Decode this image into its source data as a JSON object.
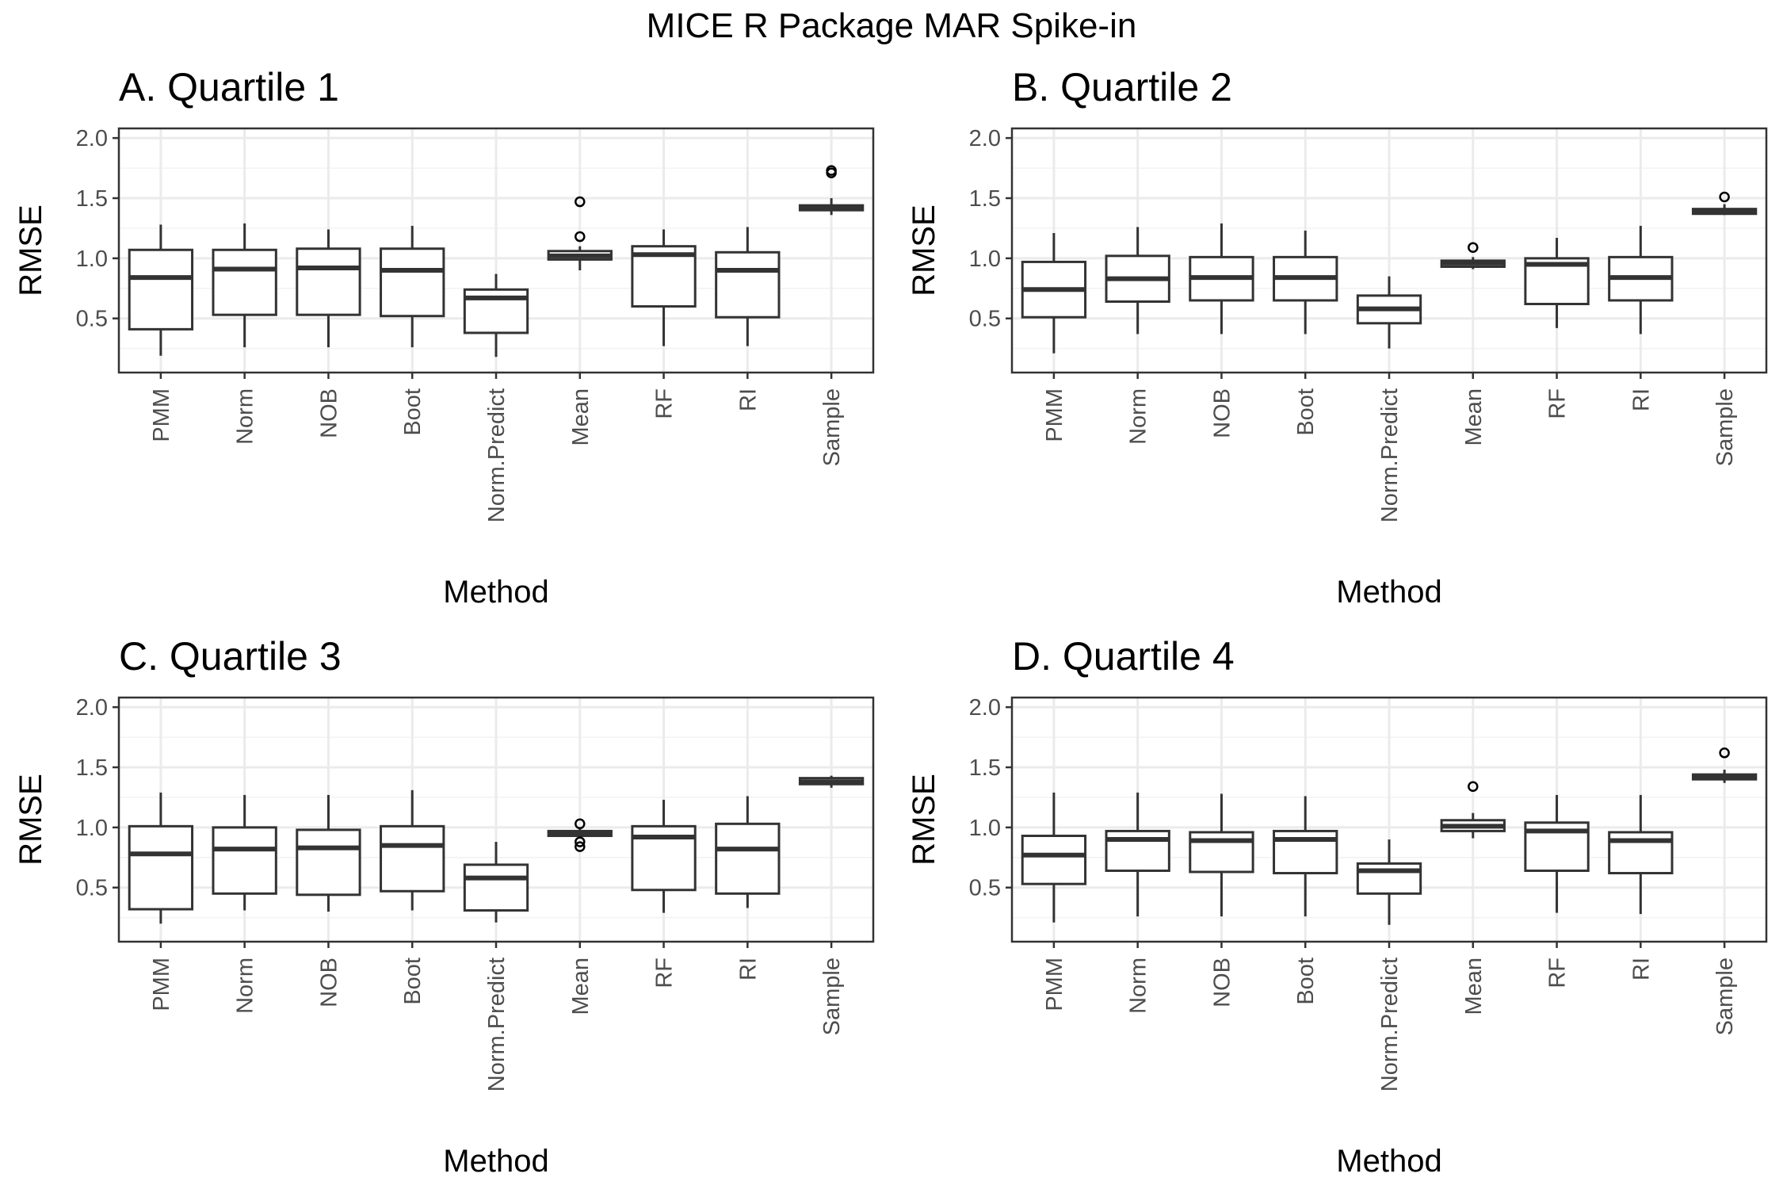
{
  "figure": {
    "title": "MICE R Package MAR Spike-in"
  },
  "chart_data": [
    {
      "type": "boxplot",
      "title": "A. Quartile 1",
      "xlabel": "Method",
      "ylabel": "RMSE",
      "ylim": [
        0.05,
        2.08
      ],
      "yticks": [
        0.5,
        1.0,
        1.5,
        2.0
      ],
      "ytick_labels": [
        "0.5",
        "1.0",
        "1.5",
        "2.0"
      ],
      "grid": true,
      "categories": [
        "PMM",
        "Norm",
        "NOB",
        "Boot",
        "Norm.Predict",
        "Mean",
        "RF",
        "RI",
        "Sample"
      ],
      "boxes": [
        {
          "min": 0.19,
          "q1": 0.41,
          "median": 0.84,
          "q3": 1.07,
          "max": 1.28,
          "outliers": []
        },
        {
          "min": 0.26,
          "q1": 0.53,
          "median": 0.91,
          "q3": 1.07,
          "max": 1.29,
          "outliers": []
        },
        {
          "min": 0.26,
          "q1": 0.53,
          "median": 0.92,
          "q3": 1.08,
          "max": 1.24,
          "outliers": []
        },
        {
          "min": 0.26,
          "q1": 0.52,
          "median": 0.9,
          "q3": 1.08,
          "max": 1.27,
          "outliers": []
        },
        {
          "min": 0.18,
          "q1": 0.38,
          "median": 0.67,
          "q3": 0.74,
          "max": 0.87,
          "outliers": []
        },
        {
          "min": 0.9,
          "q1": 0.99,
          "median": 1.02,
          "q3": 1.06,
          "max": 1.1,
          "outliers": [
            1.18,
            1.47
          ]
        },
        {
          "min": 0.27,
          "q1": 0.6,
          "median": 1.03,
          "q3": 1.1,
          "max": 1.24,
          "outliers": []
        },
        {
          "min": 0.27,
          "q1": 0.51,
          "median": 0.9,
          "q3": 1.05,
          "max": 1.26,
          "outliers": []
        },
        {
          "min": 1.36,
          "q1": 1.4,
          "median": 1.42,
          "q3": 1.44,
          "max": 1.5,
          "outliers": [
            1.71,
            1.73
          ]
        }
      ]
    },
    {
      "type": "boxplot",
      "title": "B. Quartile 2",
      "xlabel": "Method",
      "ylabel": "RMSE",
      "ylim": [
        0.05,
        2.08
      ],
      "yticks": [
        0.5,
        1.0,
        1.5,
        2.0
      ],
      "ytick_labels": [
        "0.5",
        "1.0",
        "1.5",
        "2.0"
      ],
      "grid": true,
      "categories": [
        "PMM",
        "Norm",
        "NOB",
        "Boot",
        "Norm.Predict",
        "Mean",
        "RF",
        "RI",
        "Sample"
      ],
      "boxes": [
        {
          "min": 0.21,
          "q1": 0.51,
          "median": 0.74,
          "q3": 0.97,
          "max": 1.21,
          "outliers": []
        },
        {
          "min": 0.37,
          "q1": 0.64,
          "median": 0.83,
          "q3": 1.02,
          "max": 1.26,
          "outliers": []
        },
        {
          "min": 0.37,
          "q1": 0.65,
          "median": 0.84,
          "q3": 1.01,
          "max": 1.29,
          "outliers": []
        },
        {
          "min": 0.37,
          "q1": 0.65,
          "median": 0.84,
          "q3": 1.01,
          "max": 1.23,
          "outliers": []
        },
        {
          "min": 0.25,
          "q1": 0.46,
          "median": 0.58,
          "q3": 0.69,
          "max": 0.85,
          "outliers": []
        },
        {
          "min": 0.91,
          "q1": 0.93,
          "median": 0.96,
          "q3": 0.98,
          "max": 1.01,
          "outliers": [
            1.09
          ]
        },
        {
          "min": 0.42,
          "q1": 0.62,
          "median": 0.95,
          "q3": 1.0,
          "max": 1.17,
          "outliers": []
        },
        {
          "min": 0.37,
          "q1": 0.65,
          "median": 0.84,
          "q3": 1.01,
          "max": 1.27,
          "outliers": []
        },
        {
          "min": 1.36,
          "q1": 1.37,
          "median": 1.39,
          "q3": 1.41,
          "max": 1.45,
          "outliers": [
            1.51
          ]
        }
      ]
    },
    {
      "type": "boxplot",
      "title": "C. Quartile 3",
      "xlabel": "Method",
      "ylabel": "RMSE",
      "ylim": [
        0.05,
        2.08
      ],
      "yticks": [
        0.5,
        1.0,
        1.5,
        2.0
      ],
      "ytick_labels": [
        "0.5",
        "1.0",
        "1.5",
        "2.0"
      ],
      "grid": true,
      "categories": [
        "PMM",
        "Norm",
        "NOB",
        "Boot",
        "Norm.Predict",
        "Mean",
        "RF",
        "RI",
        "Sample"
      ],
      "boxes": [
        {
          "min": 0.2,
          "q1": 0.32,
          "median": 0.78,
          "q3": 1.01,
          "max": 1.29,
          "outliers": []
        },
        {
          "min": 0.31,
          "q1": 0.45,
          "median": 0.82,
          "q3": 1.0,
          "max": 1.27,
          "outliers": []
        },
        {
          "min": 0.3,
          "q1": 0.44,
          "median": 0.83,
          "q3": 0.98,
          "max": 1.27,
          "outliers": []
        },
        {
          "min": 0.31,
          "q1": 0.47,
          "median": 0.85,
          "q3": 1.01,
          "max": 1.31,
          "outliers": []
        },
        {
          "min": 0.21,
          "q1": 0.31,
          "median": 0.58,
          "q3": 0.69,
          "max": 0.88,
          "outliers": []
        },
        {
          "min": 0.93,
          "q1": 0.93,
          "median": 0.95,
          "q3": 0.97,
          "max": 0.99,
          "outliers": [
            0.84,
            0.88,
            1.03
          ]
        },
        {
          "min": 0.29,
          "q1": 0.48,
          "median": 0.92,
          "q3": 1.01,
          "max": 1.23,
          "outliers": []
        },
        {
          "min": 0.33,
          "q1": 0.45,
          "median": 0.82,
          "q3": 1.03,
          "max": 1.26,
          "outliers": []
        },
        {
          "min": 1.33,
          "q1": 1.36,
          "median": 1.38,
          "q3": 1.41,
          "max": 1.43,
          "outliers": []
        }
      ]
    },
    {
      "type": "boxplot",
      "title": "D. Quartile 4",
      "xlabel": "Method",
      "ylabel": "RMSE",
      "ylim": [
        0.05,
        2.08
      ],
      "yticks": [
        0.5,
        1.0,
        1.5,
        2.0
      ],
      "ytick_labels": [
        "0.5",
        "1.0",
        "1.5",
        "2.0"
      ],
      "grid": true,
      "categories": [
        "PMM",
        "Norm",
        "NOB",
        "Boot",
        "Norm.Predict",
        "Mean",
        "RF",
        "RI",
        "Sample"
      ],
      "boxes": [
        {
          "min": 0.21,
          "q1": 0.53,
          "median": 0.77,
          "q3": 0.93,
          "max": 1.29,
          "outliers": []
        },
        {
          "min": 0.26,
          "q1": 0.64,
          "median": 0.9,
          "q3": 0.97,
          "max": 1.29,
          "outliers": []
        },
        {
          "min": 0.26,
          "q1": 0.63,
          "median": 0.89,
          "q3": 0.96,
          "max": 1.28,
          "outliers": []
        },
        {
          "min": 0.26,
          "q1": 0.62,
          "median": 0.9,
          "q3": 0.97,
          "max": 1.26,
          "outliers": []
        },
        {
          "min": 0.19,
          "q1": 0.45,
          "median": 0.64,
          "q3": 0.7,
          "max": 0.9,
          "outliers": []
        },
        {
          "min": 0.91,
          "q1": 0.97,
          "median": 1.01,
          "q3": 1.06,
          "max": 1.12,
          "outliers": [
            1.34
          ]
        },
        {
          "min": 0.29,
          "q1": 0.64,
          "median": 0.97,
          "q3": 1.04,
          "max": 1.27,
          "outliers": []
        },
        {
          "min": 0.28,
          "q1": 0.62,
          "median": 0.89,
          "q3": 0.96,
          "max": 1.27,
          "outliers": []
        },
        {
          "min": 1.37,
          "q1": 1.4,
          "median": 1.42,
          "q3": 1.44,
          "max": 1.48,
          "outliers": [
            1.62
          ]
        }
      ]
    }
  ]
}
